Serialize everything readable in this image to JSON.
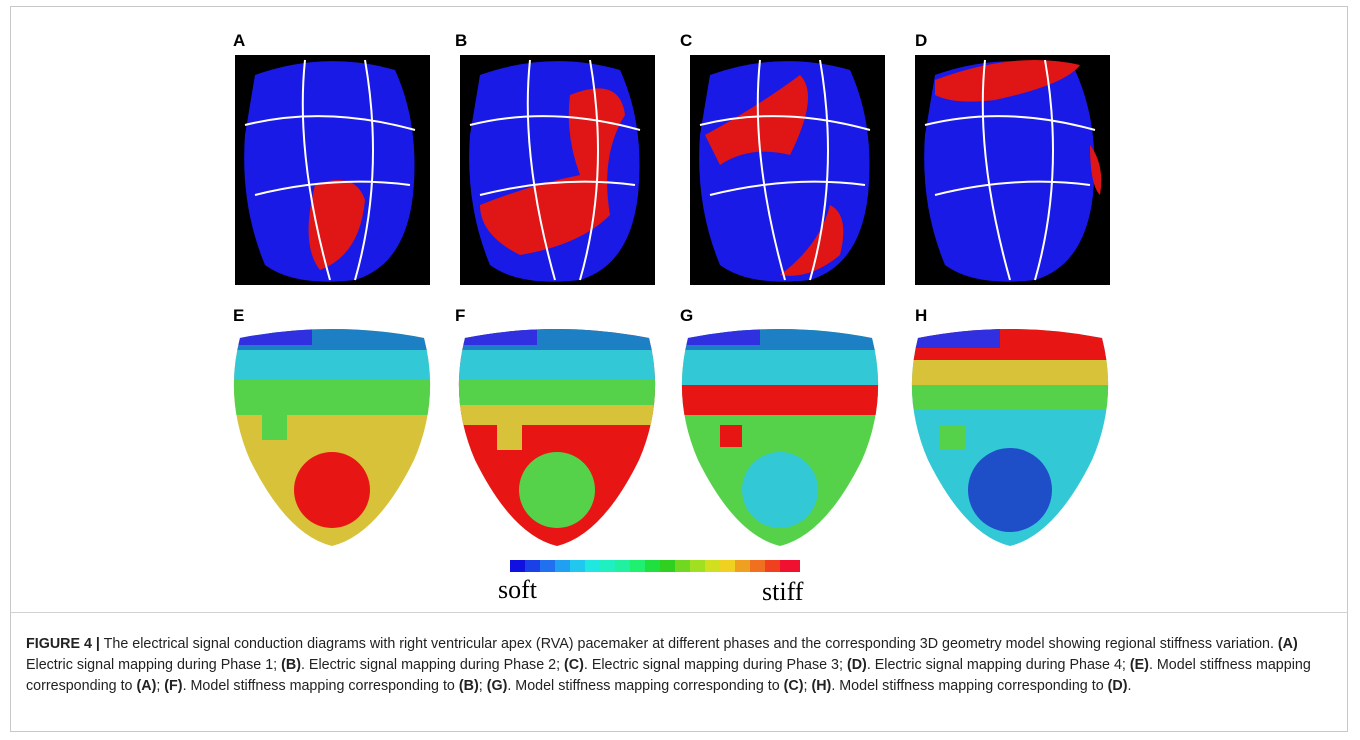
{
  "figure": {
    "panel_labels": [
      "A",
      "B",
      "C",
      "D",
      "E",
      "F",
      "G",
      "H"
    ],
    "colorbar": {
      "low": "soft",
      "high": "stiff"
    },
    "caption": [
      {
        "text": "FIGURE 4 |",
        "bold": true
      },
      {
        "text": " The electrical signal conduction diagrams with right ventricular apex (RVA) pacemaker at different phases and the corresponding 3D geometry model showing regional stiffness variation. ",
        "bold": false
      },
      {
        "text": "(A)",
        "bold": true
      },
      {
        "text": " Electric signal mapping during Phase 1; ",
        "bold": false
      },
      {
        "text": "(B)",
        "bold": true
      },
      {
        "text": ". Electric signal mapping during Phase 2; ",
        "bold": false
      },
      {
        "text": "(C)",
        "bold": true
      },
      {
        "text": ". Electric signal mapping during Phase 3; ",
        "bold": false
      },
      {
        "text": "(D)",
        "bold": true
      },
      {
        "text": ". Electric signal mapping during Phase 4; ",
        "bold": false
      },
      {
        "text": "(E)",
        "bold": true
      },
      {
        "text": ". Model stiffness mapping corresponding to ",
        "bold": false
      },
      {
        "text": "(A)",
        "bold": true
      },
      {
        "text": "; ",
        "bold": false
      },
      {
        "text": "(F)",
        "bold": true
      },
      {
        "text": ". Model stiffness mapping corresponding to ",
        "bold": false
      },
      {
        "text": "(B)",
        "bold": true
      },
      {
        "text": "; ",
        "bold": false
      },
      {
        "text": "(G)",
        "bold": true
      },
      {
        "text": ". Model stiffness mapping corresponding to ",
        "bold": false
      },
      {
        "text": "(C)",
        "bold": true
      },
      {
        "text": "; ",
        "bold": false
      },
      {
        "text": "(H)",
        "bold": true
      },
      {
        "text": ". Model stiffness mapping corresponding to ",
        "bold": false
      },
      {
        "text": "(D)",
        "bold": true
      },
      {
        "text": ".",
        "bold": false
      }
    ]
  }
}
